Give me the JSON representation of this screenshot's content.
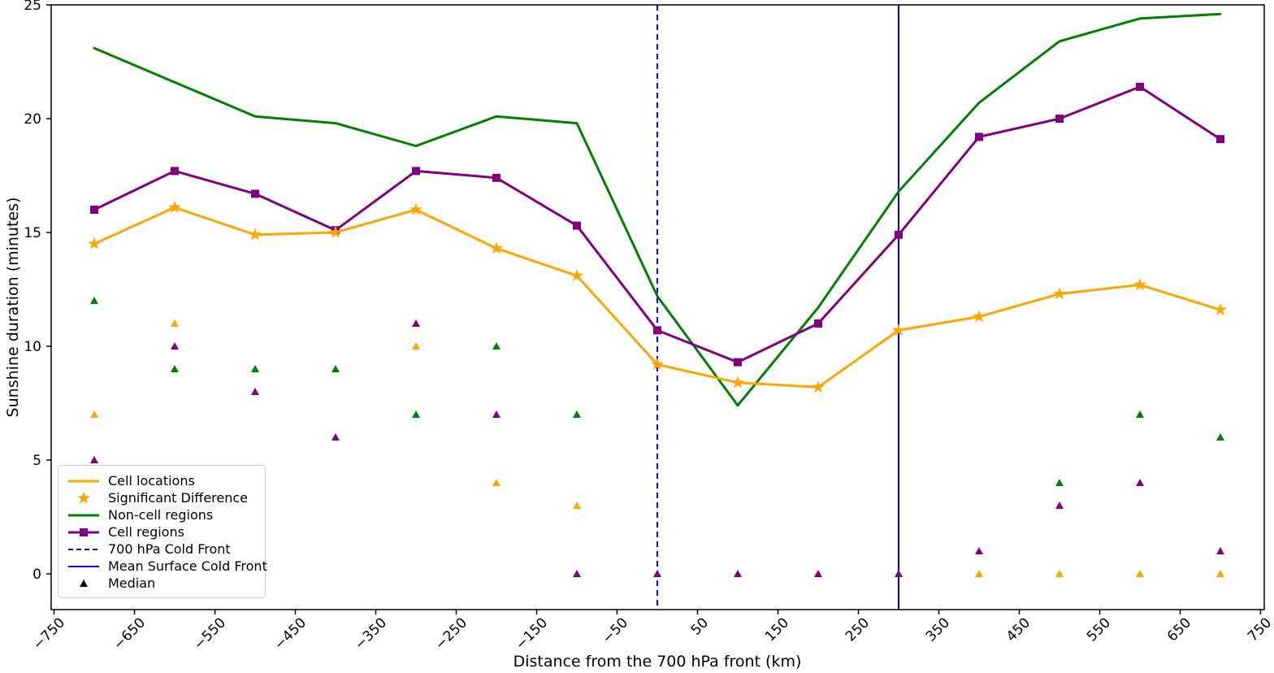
{
  "chart_data": {
    "type": "line",
    "title": "",
    "xlabel": "Distance from the 700 hPa front (km)",
    "ylabel": "Sunshine duration (minutes)",
    "x": [
      -700,
      -600,
      -500,
      -400,
      -300,
      -200,
      -100,
      0,
      100,
      200,
      300,
      400,
      500,
      600,
      700
    ],
    "series": [
      {
        "name": "Non-cell regions",
        "slug": "non-cell-regions",
        "color": "#008000",
        "marker": "none",
        "values": [
          23.1,
          21.6,
          20.1,
          19.8,
          18.8,
          20.1,
          19.8,
          12.2,
          7.4,
          11.7,
          16.8,
          20.7,
          23.4,
          24.4,
          24.6
        ]
      },
      {
        "name": "Cell regions",
        "slug": "cell-regions",
        "color": "#800080",
        "marker": "square",
        "values": [
          16.0,
          17.7,
          16.7,
          15.1,
          17.7,
          17.4,
          15.3,
          10.7,
          9.3,
          11.0,
          14.9,
          19.2,
          20.0,
          21.4,
          19.1
        ]
      },
      {
        "name": "Cell locations",
        "slug": "cell-locations",
        "color": "#FFA500",
        "marker": "star",
        "marker_meaning": "Significant Difference",
        "values": [
          14.5,
          16.1,
          14.9,
          15.0,
          16.0,
          14.3,
          13.1,
          9.2,
          8.4,
          8.2,
          10.7,
          11.3,
          12.3,
          12.7,
          11.6
        ]
      }
    ],
    "median_markers": {
      "label": "Median",
      "points": [
        {
          "x": -700,
          "y": 12,
          "color": "#008000"
        },
        {
          "x": -700,
          "y": 7,
          "color": "#FFA500"
        },
        {
          "x": -700,
          "y": 5,
          "color": "#800080"
        },
        {
          "x": -600,
          "y": 11,
          "color": "#FFA500"
        },
        {
          "x": -600,
          "y": 10,
          "color": "#800080"
        },
        {
          "x": -600,
          "y": 9,
          "color": "#008000"
        },
        {
          "x": -500,
          "y": 9,
          "color": "#008000"
        },
        {
          "x": -500,
          "y": 8,
          "color": "#800080"
        },
        {
          "x": -400,
          "y": 9,
          "color": "#008000"
        },
        {
          "x": -400,
          "y": 6,
          "color": "#800080"
        },
        {
          "x": -300,
          "y": 11,
          "color": "#800080"
        },
        {
          "x": -300,
          "y": 10,
          "color": "#FFA500"
        },
        {
          "x": -300,
          "y": 7,
          "color": "#008000"
        },
        {
          "x": -200,
          "y": 10,
          "color": "#008000"
        },
        {
          "x": -200,
          "y": 7,
          "color": "#800080"
        },
        {
          "x": -200,
          "y": 4,
          "color": "#FFA500"
        },
        {
          "x": -100,
          "y": 7,
          "color": "#008000"
        },
        {
          "x": -100,
          "y": 3,
          "color": "#FFA500"
        },
        {
          "x": -100,
          "y": 0,
          "color": "#800080"
        },
        {
          "x": 0,
          "y": 0,
          "color": "#800080"
        },
        {
          "x": 100,
          "y": 0,
          "color": "#800080"
        },
        {
          "x": 200,
          "y": 0,
          "color": "#800080"
        },
        {
          "x": 300,
          "y": 0,
          "color": "#800080"
        },
        {
          "x": 400,
          "y": 1,
          "color": "#800080"
        },
        {
          "x": 400,
          "y": 0,
          "color": "#FFA500"
        },
        {
          "x": 500,
          "y": 4,
          "color": "#008000"
        },
        {
          "x": 500,
          "y": 3,
          "color": "#800080"
        },
        {
          "x": 500,
          "y": 0,
          "color": "#FFA500"
        },
        {
          "x": 600,
          "y": 7,
          "color": "#008000"
        },
        {
          "x": 600,
          "y": 4,
          "color": "#800080"
        },
        {
          "x": 600,
          "y": 0,
          "color": "#FFA500"
        },
        {
          "x": 700,
          "y": 6,
          "color": "#008000"
        },
        {
          "x": 700,
          "y": 1,
          "color": "#800080"
        },
        {
          "x": 700,
          "y": 0,
          "color": "#FFA500"
        }
      ]
    },
    "vlines": [
      {
        "x": 0,
        "style": "dashed",
        "color": "#0000FF",
        "label": "700 hPa Cold Front",
        "slug": "700-hpa-cold-front"
      },
      {
        "x": 300,
        "style": "solid",
        "color": "#0000FF",
        "label": "Mean Surface Cold Front",
        "slug": "mean-surface-cold-front"
      }
    ],
    "xticks": [
      -750,
      -650,
      -550,
      -450,
      -350,
      -250,
      -150,
      -50,
      50,
      150,
      250,
      350,
      450,
      550,
      650,
      750
    ],
    "yticks": [
      0,
      5,
      10,
      15,
      20,
      25
    ],
    "xlim": [
      -753,
      755
    ],
    "ylim": [
      -1.6,
      25
    ],
    "grid": false,
    "legend_position": "lower left",
    "legend": [
      {
        "label": "Cell locations",
        "glyph": "line",
        "color": "#FFA500",
        "slug": "cell-locations"
      },
      {
        "label": "Significant Difference",
        "glyph": "star",
        "color": "#FFA500",
        "slug": "significant-difference"
      },
      {
        "label": "Non-cell regions",
        "glyph": "line",
        "color": "#008000",
        "slug": "non-cell-regions"
      },
      {
        "label": "Cell regions",
        "glyph": "line-square",
        "color": "#800080",
        "slug": "cell-regions"
      },
      {
        "label": "700 hPa Cold Front",
        "glyph": "dashed-line",
        "color": "#0000FF",
        "slug": "700-hpa-cold-front"
      },
      {
        "label": "Mean Surface Cold Front",
        "glyph": "line-thin",
        "color": "#0000FF",
        "slug": "mean-surface-cold-front"
      },
      {
        "label": "Median",
        "glyph": "triangle",
        "color": "#000000",
        "slug": "median"
      }
    ]
  }
}
